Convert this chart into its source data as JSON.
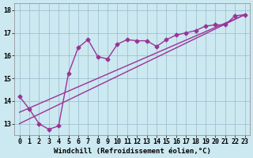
{
  "line1_x": [
    0,
    1,
    2,
    3,
    4,
    5,
    6,
    7,
    8,
    9,
    10,
    11,
    12,
    13,
    14,
    15,
    16,
    17,
    18,
    19,
    20,
    21,
    22,
    23
  ],
  "line1_y": [
    14.2,
    13.65,
    13.0,
    12.75,
    12.9,
    15.2,
    16.35,
    16.7,
    15.95,
    15.85,
    16.5,
    16.7,
    16.65,
    16.65,
    16.4,
    16.7,
    16.9,
    17.0,
    17.1,
    17.3,
    17.35,
    17.35,
    17.75,
    17.8
  ],
  "line2_x": [
    0,
    23
  ],
  "line2_y": [
    13.0,
    17.8
  ],
  "line3_x": [
    0,
    23
  ],
  "line3_y": [
    13.5,
    17.8
  ],
  "line_color": "#993399",
  "bg_color": "#cce8f0",
  "grid_color": "#99bbcc",
  "xlabel": "Windchill (Refroidissement éolien,°C)",
  "ylim": [
    12.5,
    18.3
  ],
  "xlim": [
    -0.5,
    23.5
  ],
  "yticks": [
    13,
    14,
    15,
    16,
    17,
    18
  ],
  "xticks": [
    0,
    1,
    2,
    3,
    4,
    5,
    6,
    7,
    8,
    9,
    10,
    11,
    12,
    13,
    14,
    15,
    16,
    17,
    18,
    19,
    20,
    21,
    22,
    23
  ],
  "marker": "D",
  "markersize": 2.5,
  "linewidth": 1.0,
  "xlabel_fontsize": 6.5,
  "tick_fontsize": 6.0
}
